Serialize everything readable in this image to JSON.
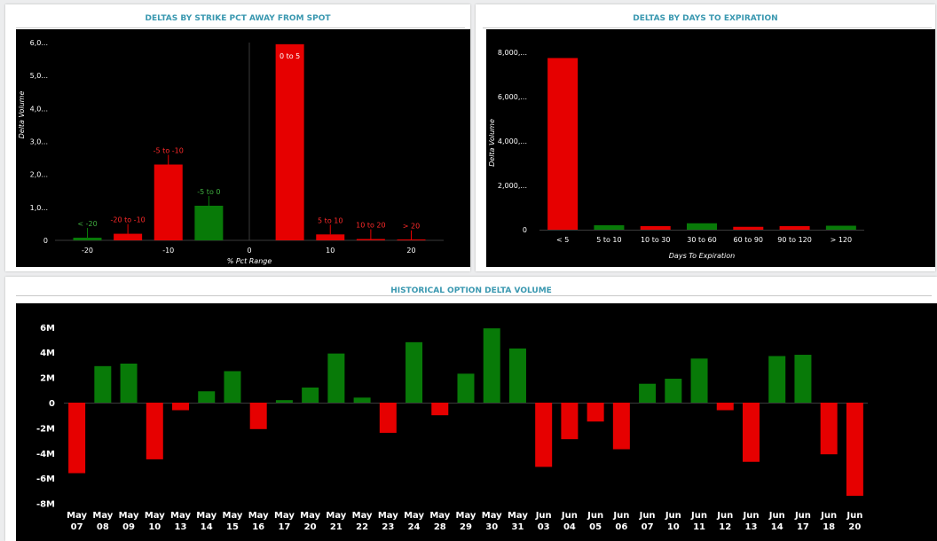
{
  "colors": {
    "positive": "#087a08",
    "negative": "#e60000",
    "title": "#3a98b0",
    "chart_background": "#000000",
    "axis_text": "#ffffff"
  },
  "panels": {
    "strike": {
      "title": "DELTAS BY STRIKE PCT AWAY FROM SPOT"
    },
    "expiration": {
      "title": "DELTAS BY DAYS TO EXPIRATION"
    },
    "history": {
      "title": "HISTORICAL OPTION DELTA VOLUME"
    }
  },
  "chart_data": [
    {
      "id": "strike",
      "type": "bar",
      "title": "DELTAS BY STRIKE PCT AWAY FROM SPOT",
      "xlabel": "% Pct Range",
      "ylabel": "Delta Volume",
      "x_ticks": [
        -20,
        -10,
        0,
        10,
        20
      ],
      "y_ticks": [
        "0",
        "1,0...",
        "2,0...",
        "3,0...",
        "4,0...",
        "5,0...",
        "6,0..."
      ],
      "y_tick_values": [
        0,
        1000,
        2000,
        3000,
        4000,
        5000,
        6000
      ],
      "ylim": [
        0,
        6000
      ],
      "xlim": [
        -24,
        24
      ],
      "grid": false,
      "bars": [
        {
          "label": "< -20",
          "x": -20,
          "value": 80,
          "color": "positive"
        },
        {
          "label": "-20 to -10",
          "x": -15,
          "value": 200,
          "color": "negative"
        },
        {
          "label": "-5 to -10",
          "x": -10,
          "value": 2300,
          "color": "negative"
        },
        {
          "label": "-5 to 0",
          "x": -5,
          "value": 1050,
          "color": "positive"
        },
        {
          "label": "0 to 5",
          "x": 5,
          "value": 5950,
          "color": "negative"
        },
        {
          "label": "5 to 10",
          "x": 10,
          "value": 180,
          "color": "negative"
        },
        {
          "label": "10 to 20",
          "x": 15,
          "value": 40,
          "color": "negative"
        },
        {
          "label": "> 20",
          "x": 20,
          "value": 8,
          "color": "negative"
        }
      ]
    },
    {
      "id": "expiration",
      "type": "bar",
      "title": "DELTAS BY DAYS TO EXPIRATION",
      "xlabel": "Days To Expiration",
      "ylabel": "Delta Volume",
      "categories": [
        "< 5",
        "5 to 10",
        "10 to 30",
        "30 to 60",
        "60 to 90",
        "90 to 120",
        "> 120"
      ],
      "values": [
        7750,
        200,
        160,
        290,
        130,
        160,
        180
      ],
      "colors": [
        "negative",
        "positive",
        "negative",
        "positive",
        "negative",
        "negative",
        "positive"
      ],
      "y_ticks": [
        "0",
        "2,000,...",
        "4,000,...",
        "6,000,...",
        "8,000,..."
      ],
      "y_tick_values": [
        0,
        2000,
        4000,
        6000,
        8000
      ],
      "ylim": [
        0,
        8000
      ],
      "grid": false
    },
    {
      "id": "history",
      "type": "bar",
      "title": "HISTORICAL OPTION DELTA VOLUME",
      "categories": [
        [
          "May",
          "07"
        ],
        [
          "May",
          "08"
        ],
        [
          "May",
          "09"
        ],
        [
          "May",
          "10"
        ],
        [
          "May",
          "13"
        ],
        [
          "May",
          "14"
        ],
        [
          "May",
          "15"
        ],
        [
          "May",
          "16"
        ],
        [
          "May",
          "17"
        ],
        [
          "May",
          "20"
        ],
        [
          "May",
          "21"
        ],
        [
          "May",
          "22"
        ],
        [
          "May",
          "23"
        ],
        [
          "May",
          "24"
        ],
        [
          "May",
          "28"
        ],
        [
          "May",
          "29"
        ],
        [
          "May",
          "30"
        ],
        [
          "May",
          "31"
        ],
        [
          "Jun",
          "03"
        ],
        [
          "Jun",
          "04"
        ],
        [
          "Jun",
          "05"
        ],
        [
          "Jun",
          "06"
        ],
        [
          "Jun",
          "07"
        ],
        [
          "Jun",
          "10"
        ],
        [
          "Jun",
          "11"
        ],
        [
          "Jun",
          "12"
        ],
        [
          "Jun",
          "13"
        ],
        [
          "Jun",
          "14"
        ],
        [
          "Jun",
          "17"
        ],
        [
          "Jun",
          "18"
        ],
        [
          "Jun",
          "20"
        ]
      ],
      "values": [
        -5.6,
        2.9,
        3.1,
        -4.5,
        -0.6,
        0.9,
        2.5,
        -2.1,
        0.2,
        1.2,
        3.9,
        0.4,
        -2.4,
        4.8,
        -1.0,
        2.3,
        5.9,
        4.3,
        -5.1,
        -2.9,
        -1.5,
        -3.7,
        1.5,
        1.9,
        3.5,
        -0.6,
        -4.7,
        3.7,
        3.8,
        -4.1,
        -7.4
      ],
      "value_unit": "M",
      "y_ticks": [
        "6M",
        "4M",
        "2M",
        "0",
        "-2M",
        "-4M",
        "-6M",
        "-8M"
      ],
      "y_tick_values": [
        6,
        4,
        2,
        0,
        -2,
        -4,
        -6,
        -8
      ],
      "ylim": [
        -8,
        6.5
      ],
      "grid": false
    }
  ]
}
